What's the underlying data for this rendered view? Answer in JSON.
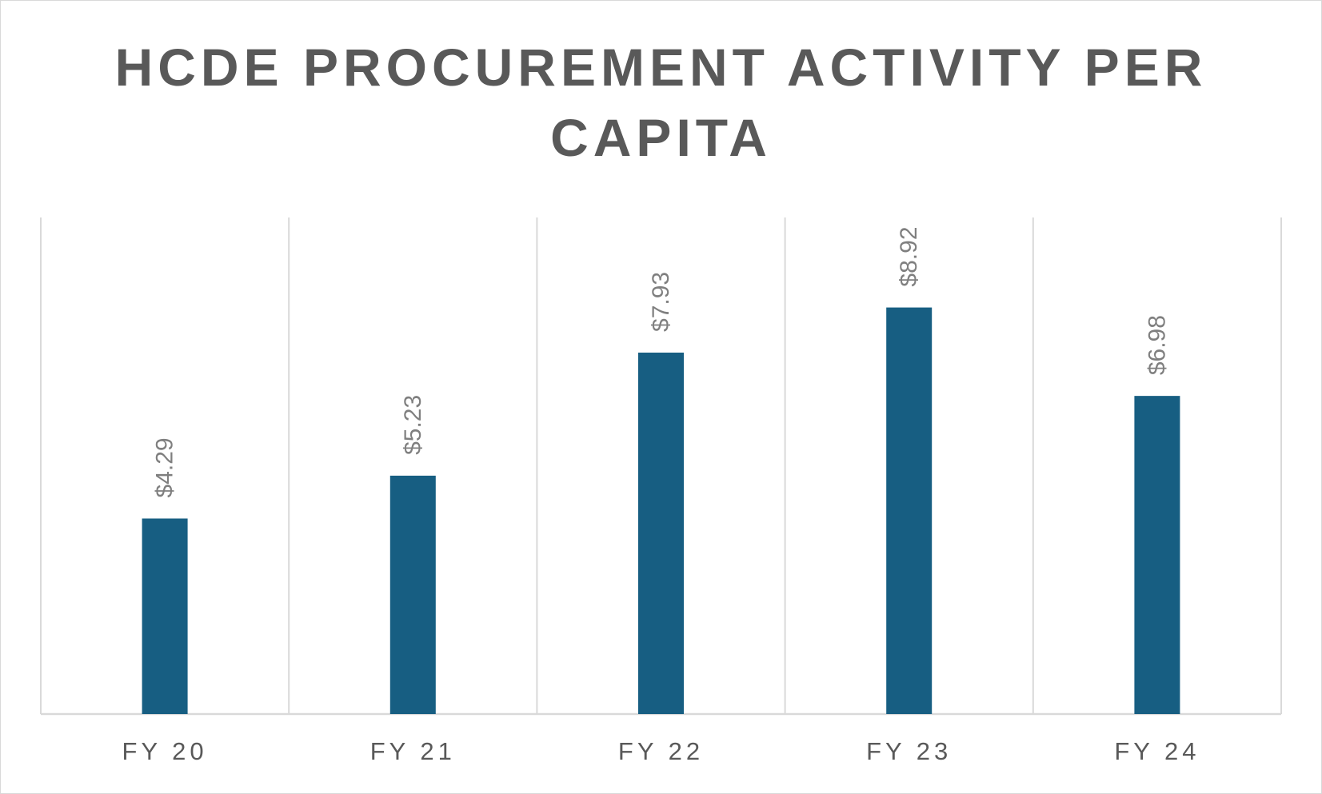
{
  "chart_data": {
    "type": "bar",
    "title_lines": [
      "HCDE PROCUREMENT ACTIVITY PER",
      "CAPITA"
    ],
    "categories": [
      "FY 20",
      "FY 21",
      "FY 22",
      "FY 23",
      "FY 24"
    ],
    "values": [
      4.29,
      5.23,
      7.93,
      8.92,
      6.98
    ],
    "data_labels": [
      "$4.29",
      "$5.23",
      "$7.93",
      "$8.92",
      "$6.98"
    ],
    "xlabel": "",
    "ylabel": "",
    "ylim": [
      0,
      10
    ],
    "grid": "vertical category separators",
    "legend": "none",
    "bar_color": "#175e82",
    "label_color": "#7f7f7f",
    "axis_text_color": "#595959",
    "grid_color": "#d9d9d9"
  }
}
